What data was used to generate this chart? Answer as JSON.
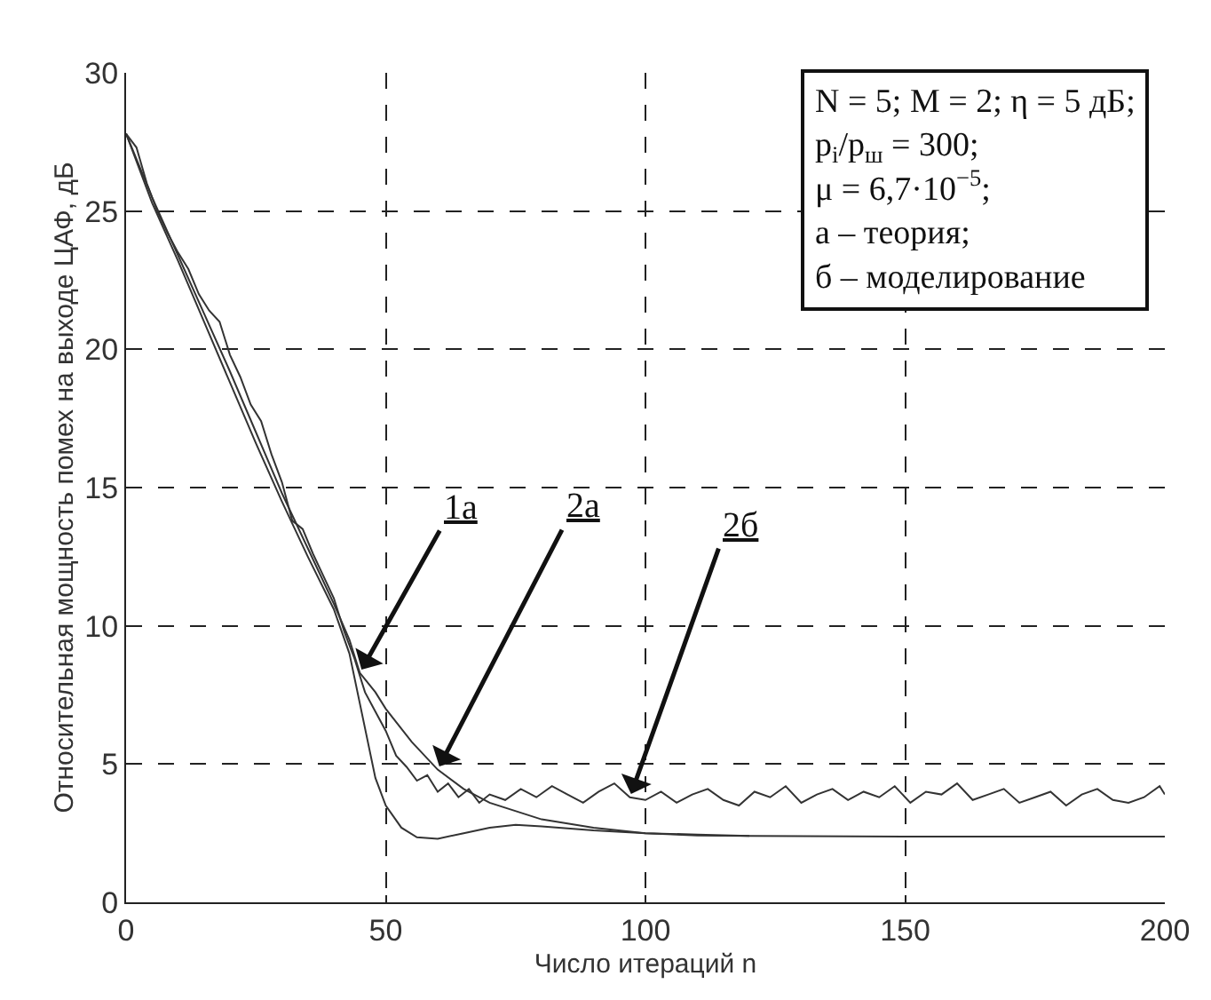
{
  "chart_data": {
    "type": "line",
    "xlabel": "Число итераций n",
    "ylabel": "Относительная мощность помех на выходе ЦАФ, дБ",
    "xlim": [
      0,
      200
    ],
    "xticks": [
      0,
      50,
      100,
      150,
      200
    ],
    "ylim": [
      0,
      30
    ],
    "yticks": [
      0,
      5,
      10,
      15,
      20,
      25,
      30
    ],
    "grid": true,
    "marker": "none",
    "line_style": "solid",
    "series": [
      {
        "color": "#333333",
        "x": [
          0,
          5,
          10,
          15,
          20,
          25,
          30,
          35,
          40,
          43,
          45,
          48,
          50,
          53,
          56,
          60,
          65,
          70,
          75,
          80,
          90,
          100,
          110,
          120
        ],
        "values": [
          27.8,
          25.3,
          23.2,
          21.0,
          18.8,
          16.6,
          14.5,
          12.5,
          10.6,
          9.0,
          7.2,
          4.5,
          3.5,
          2.7,
          2.35,
          2.3,
          2.5,
          2.7,
          2.8,
          2.75,
          2.6,
          2.5,
          2.45,
          2.4
        ]
      },
      {
        "color": "#333333",
        "x": [
          0,
          5,
          10,
          15,
          20,
          25,
          30,
          35,
          40,
          43,
          45,
          48,
          50,
          55,
          60,
          65,
          70,
          80,
          90,
          100,
          110,
          120,
          150,
          200
        ],
        "values": [
          27.8,
          25.5,
          23.4,
          21.3,
          19.2,
          17.0,
          14.8,
          12.8,
          10.8,
          9.5,
          8.3,
          7.6,
          7.0,
          5.8,
          4.8,
          4.1,
          3.6,
          3.0,
          2.7,
          2.5,
          2.42,
          2.4,
          2.38,
          2.38
        ]
      },
      {
        "color": "#333333",
        "x": [
          0,
          2,
          4,
          6,
          8,
          10,
          12,
          14,
          16,
          18,
          20,
          22,
          24,
          26,
          28,
          30,
          32,
          34,
          36,
          38,
          40,
          42,
          44,
          46,
          48,
          50,
          52,
          54,
          56,
          58,
          60,
          62,
          64,
          66,
          68,
          70,
          73,
          76,
          79,
          82,
          85,
          88,
          91,
          94,
          97,
          100,
          103,
          106,
          109,
          112,
          115,
          118,
          121,
          124,
          127,
          130,
          133,
          136,
          139,
          142,
          145,
          148,
          151,
          154,
          157,
          160,
          163,
          166,
          169,
          172,
          175,
          178,
          181,
          184,
          187,
          190,
          193,
          196,
          199,
          200
        ],
        "values": [
          27.8,
          27.3,
          26.0,
          25.0,
          24.2,
          23.5,
          22.9,
          22.0,
          21.4,
          21.0,
          19.8,
          19.0,
          18.0,
          17.4,
          16.2,
          15.2,
          13.8,
          13.5,
          12.6,
          11.8,
          11.0,
          9.8,
          8.8,
          7.6,
          6.9,
          6.2,
          5.3,
          4.9,
          4.4,
          4.6,
          4.0,
          4.3,
          3.8,
          4.1,
          3.6,
          3.9,
          3.7,
          4.1,
          3.8,
          4.2,
          3.9,
          3.6,
          4.0,
          4.3,
          3.8,
          3.7,
          4.0,
          3.6,
          3.9,
          4.1,
          3.7,
          3.5,
          4.0,
          3.8,
          4.2,
          3.6,
          3.9,
          4.1,
          3.7,
          4.0,
          3.8,
          4.2,
          3.6,
          4.0,
          3.9,
          4.3,
          3.7,
          3.9,
          4.1,
          3.6,
          3.8,
          4.0,
          3.5,
          3.9,
          4.1,
          3.7,
          3.6,
          3.8,
          4.2,
          3.9
        ]
      }
    ],
    "annotations": [
      {
        "text": "1а",
        "x": 45,
        "y": 8.3
      },
      {
        "text": "2а",
        "x": 60,
        "y": 4.8
      },
      {
        "text": "2б",
        "x": 97,
        "y": 3.8
      },
      "N = 5; M = 2; η = 5 дБ;",
      "p$_{i}$/p$_{ш}$ = 300;",
      "μ = 6,7·10$^{−5}$;",
      "а – теория;",
      "б – моделирование"
    ]
  }
}
